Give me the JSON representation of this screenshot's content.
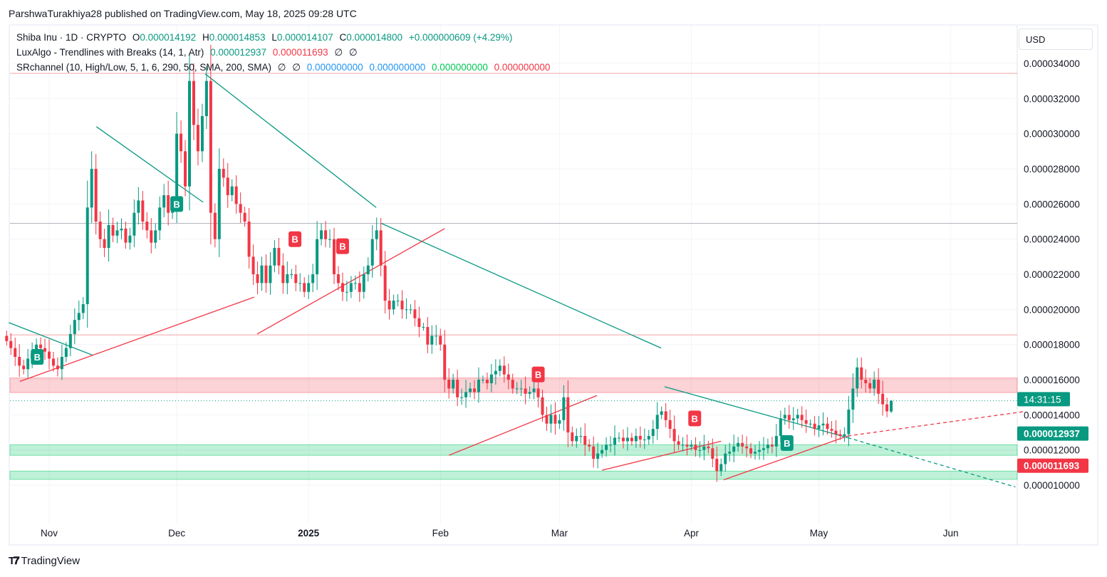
{
  "header": {
    "published": "ParshwaTurakhiya28 published on TradingView.com, May 18, 2025 09:28 UTC"
  },
  "legend": {
    "symbol": "Shiba Inu · 1D · CRYPTO",
    "o_label": "O",
    "o": "0.000014192",
    "h_label": "H",
    "h": "0.000014853",
    "l_label": "L",
    "l": "0.000014107",
    "c_label": "C",
    "c": "0.000014800",
    "change": "+0.000000609 (+4.29%)",
    "ind1": "LuxAlgo - Trendlines with Breaks (14, 1, Atr)",
    "ind1_v1": "0.000012937",
    "ind1_v2": "0.000011693",
    "ind1_e1": "∅",
    "ind1_e2": "∅",
    "ind2": "SRchannel (10, High/Low, 5, 1, 6, 290, 50, SMA, 200, SMA)",
    "ind2_e1": "∅",
    "ind2_e2": "∅",
    "ind2_v1": "0.000000000",
    "ind2_v2": "0.000000000",
    "ind2_v3": "0.000000000",
    "ind2_v4": "0.000000000"
  },
  "currency": "USD",
  "branding": "TradingView",
  "colors": {
    "up": "#089981",
    "down": "#f23645"
  },
  "chart_data": {
    "type": "candlestick",
    "title": "Shiba Inu · 1D · CRYPTO",
    "unit_scale": 1e-06,
    "start_date": "2024-10-22",
    "closes": [
      18.2,
      17.8,
      17.3,
      16.8,
      16.6,
      17.2,
      17.5,
      18.0,
      17.8,
      17.6,
      17.2,
      16.8,
      16.6,
      17.3,
      17.8,
      18.6,
      19.4,
      19.8,
      20.3,
      25.8,
      28.0,
      25.0,
      24.0,
      23.5,
      24.8,
      24.2,
      24.5,
      24.6,
      23.8,
      24.2,
      25.5,
      26.2,
      25.0,
      24.5,
      23.8,
      24.5,
      25.8,
      26.5,
      25.5,
      26.0,
      30.0,
      29.0,
      27.0,
      33.0,
      30.5,
      29.0,
      31.0,
      33.0,
      25.5,
      24.0,
      28.0,
      27.5,
      26.5,
      27.0,
      26.0,
      25.5,
      25.0,
      23.0,
      22.0,
      21.5,
      22.5,
      21.5,
      22.5,
      23.5,
      22.5,
      21.5,
      22.0,
      22.0,
      21.5,
      21.5,
      21.0,
      21.5,
      22.0,
      24.0,
      24.5,
      24.0,
      24.0,
      22.0,
      21.5,
      21.0,
      21.0,
      21.5,
      21.5,
      21.0,
      22.0,
      22.5,
      24.0,
      24.5,
      22.5,
      20.5,
      20.0,
      20.5,
      20.5,
      20.0,
      20.0,
      20.0,
      19.5,
      19.0,
      19.0,
      18.0,
      18.5,
      18.5,
      18.0,
      16.0,
      15.5,
      16.0,
      15.0,
      15.0,
      15.3,
      15.5,
      15.3,
      16.0,
      16.0,
      15.8,
      16.3,
      16.5,
      16.8,
      16.3,
      16.0,
      15.5,
      15.5,
      15.5,
      15.2,
      15.3,
      15.5,
      15.0,
      14.0,
      13.5,
      14.0,
      13.5,
      13.7,
      15.0,
      13.0,
      12.5,
      12.8,
      12.8,
      12.3,
      12.2,
      11.5,
      11.8,
      12.0,
      12.3,
      12.3,
      12.7,
      12.7,
      12.5,
      12.7,
      12.5,
      12.8,
      12.6,
      12.6,
      12.8,
      13.2,
      14.0,
      14.2,
      13.7,
      13.2,
      12.5,
      12.3,
      12.3,
      12.2,
      12.3,
      12.0,
      12.0,
      12.2,
      12.1,
      11.5,
      10.8,
      11.2,
      11.8,
      11.9,
      12.2,
      12.4,
      12.2,
      12.1,
      11.8,
      11.9,
      12.0,
      12.1,
      12.3,
      12.2,
      12.8,
      13.8,
      14.0,
      13.7,
      13.8,
      14.0,
      13.7,
      13.5,
      13.5,
      13.2,
      13.4,
      13.5,
      13.2,
      13.1,
      12.9,
      12.8,
      12.9,
      14.3,
      15.5,
      16.7,
      16.0,
      15.8,
      15.5,
      16.0,
      15.2,
      14.6,
      14.2,
      14.8
    ],
    "last_candle": {
      "open": 14.192,
      "high": 14.853,
      "low": 14.107,
      "close": 14.8
    },
    "y_ticks": [
      "0.000034000",
      "0.000032000",
      "0.000030000",
      "0.000028000",
      "0.000026000",
      "0.000024000",
      "0.000022000",
      "0.000020000",
      "0.000018000",
      "0.000016000",
      "0.000014000",
      "0.000012000",
      "0.000010000"
    ],
    "y_tick_values": [
      34,
      32,
      30,
      28,
      26,
      24,
      22,
      20,
      18,
      16,
      14,
      12,
      10
    ],
    "ylim": [
      7.4,
      36.2
    ],
    "x_ticks": [
      {
        "label": "Nov",
        "index": 10,
        "bold": false
      },
      {
        "label": "Dec",
        "index": 40,
        "bold": false
      },
      {
        "label": "2025",
        "index": 71,
        "bold": true
      },
      {
        "label": "Feb",
        "index": 102,
        "bold": false
      },
      {
        "label": "Mar",
        "index": 130,
        "bold": false
      },
      {
        "label": "Apr",
        "index": 161,
        "bold": false
      },
      {
        "label": "May",
        "index": 191,
        "bold": false
      },
      {
        "label": "Jun",
        "index": 222,
        "bold": false
      }
    ],
    "trendlines_down": [
      [
        0.5,
        19.25,
        20.2,
        17.4
      ],
      [
        21.1,
        30.4,
        46.2,
        26.1
      ],
      [
        46.7,
        33.4,
        86.9,
        25.8
      ],
      [
        88.1,
        24.9,
        153.9,
        17.8
      ],
      [
        154.7,
        15.6,
        197.8,
        12.7
      ]
    ],
    "trendline_down_projection": [
      197.8,
      12.7,
      237.2,
      9.9
    ],
    "trendlines_up": [
      [
        3.1,
        15.9,
        58.2,
        20.7
      ],
      [
        58.9,
        18.6,
        103,
        24.6
      ],
      [
        104,
        11.7,
        138.8,
        15.1
      ],
      [
        140,
        10.85,
        168,
        12.5
      ],
      [
        168.6,
        10.3,
        197.8,
        12.8
      ]
    ],
    "trendline_up_projection": [
      197.8,
      12.8,
      239.6,
      14.2
    ],
    "sr_lines": [
      {
        "price": 33.43,
        "color": "#f7a1a8"
      },
      {
        "price": 24.9,
        "color": "#b2b5be"
      },
      {
        "price": 18.55,
        "color": "#f7a1a8"
      }
    ],
    "sr_zones": [
      {
        "top": 16.1,
        "bottom": 15.27,
        "type": "resistance"
      },
      {
        "top": 12.3,
        "bottom": 11.7,
        "type": "support"
      },
      {
        "top": 10.8,
        "bottom": 10.33,
        "type": "support"
      }
    ],
    "break_labels": [
      {
        "text": "B",
        "index": 7.2,
        "price": 17.3,
        "type": "up"
      },
      {
        "text": "B",
        "index": 40,
        "price": 26.0,
        "type": "up"
      },
      {
        "text": "B",
        "index": 183.5,
        "price": 12.4,
        "type": "up"
      },
      {
        "text": "B",
        "index": 67.8,
        "price": 24.0,
        "type": "down"
      },
      {
        "text": "B",
        "index": 79,
        "price": 23.6,
        "type": "down"
      },
      {
        "text": "B",
        "index": 125,
        "price": 16.3,
        "type": "down"
      },
      {
        "text": "B",
        "index": 161.8,
        "price": 13.8,
        "type": "down"
      }
    ],
    "price_badges": [
      {
        "text": "14:31:15",
        "price": 14.8,
        "color": "#089981"
      },
      {
        "text": "0.000012937",
        "price": 12.937,
        "color": "#089981"
      },
      {
        "text": "0.000011693",
        "price": 11.693,
        "color": "#f23645"
      }
    ]
  }
}
